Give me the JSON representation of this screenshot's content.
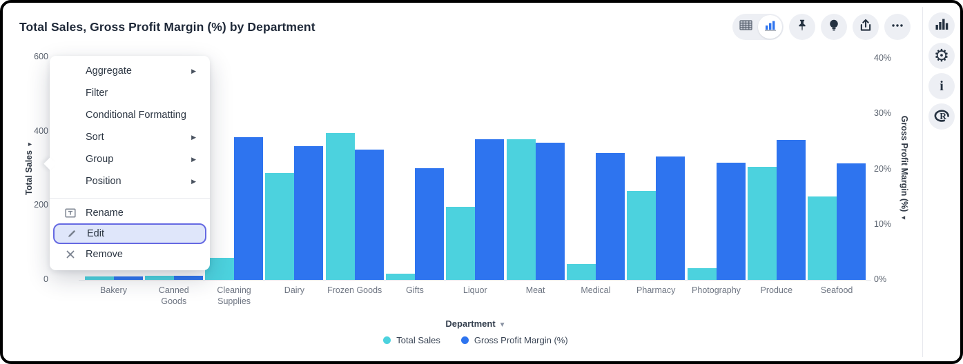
{
  "header": {
    "title": "Total Sales, Gross Profit Margin (%) by Department"
  },
  "toolbar": {
    "view_toggle": {
      "options": [
        "table-view",
        "chart-view"
      ],
      "active": "chart-view"
    },
    "buttons": [
      "pin",
      "insights-bulb",
      "export",
      "more-ellipsis"
    ]
  },
  "right_sidebar": {
    "buttons": [
      "charts",
      "settings-gear",
      "info",
      "r-logo"
    ]
  },
  "context_menu": {
    "items": [
      {
        "label": "Aggregate",
        "submenu": true
      },
      {
        "label": "Filter",
        "submenu": false
      },
      {
        "label": "Conditional Formatting",
        "submenu": false
      },
      {
        "label": "Sort",
        "submenu": true
      },
      {
        "label": "Group",
        "submenu": true
      },
      {
        "label": "Position",
        "submenu": true
      }
    ],
    "actions": [
      {
        "label": "Rename",
        "icon": "rename-icon",
        "selected": false
      },
      {
        "label": "Edit",
        "icon": "pencil-icon",
        "selected": true
      },
      {
        "label": "Remove",
        "icon": "x-icon",
        "selected": false
      }
    ]
  },
  "chart_data": {
    "type": "bar",
    "title": "Total Sales, Gross Profit Margin (%) by Department",
    "xlabel": "Department",
    "categories": [
      "Bakery",
      "Canned Goods",
      "Cleaning Supplies",
      "Dairy",
      "Frozen Goods",
      "Gifts",
      "Liquor",
      "Meat",
      "Medical",
      "Pharmacy",
      "Photography",
      "Produce",
      "Seafood"
    ],
    "series": [
      {
        "name": "Total Sales",
        "axis": "left",
        "color": "#4cd2de",
        "values": [
          9,
          11,
          60,
          288,
          396,
          17,
          197,
          379,
          43,
          240,
          32,
          305,
          225
        ]
      },
      {
        "name": "Gross Profit Margin (%)",
        "axis": "right",
        "color": "#2e74ef",
        "values": [
          0.6,
          0.8,
          25.8,
          24.2,
          23.6,
          20.2,
          25.4,
          24.8,
          22.9,
          22.3,
          21.2,
          25.3,
          21.0
        ]
      }
    ],
    "left_axis": {
      "label": "Total Sales",
      "ticks": [
        600,
        400,
        200,
        0
      ],
      "min": 0,
      "max": 600
    },
    "right_axis": {
      "label": "Gross Profit Margin (%)",
      "ticks": [
        "40%",
        "30%",
        "20%",
        "10%",
        "0%"
      ],
      "tick_values": [
        40,
        30,
        20,
        10,
        0
      ],
      "min": 0,
      "max": 40
    },
    "legend": [
      {
        "label": "Total Sales",
        "color": "#4cd2de"
      },
      {
        "label": "Gross Profit Margin (%)",
        "color": "#2e74ef"
      }
    ],
    "grid": false,
    "legend_position": "bottom"
  },
  "colors": {
    "cyan": "#4cd2de",
    "blue": "#2e74ef",
    "highlight_border": "#6569e2",
    "highlight_bg": "#dfe6fa",
    "icon_dark": "#253241"
  }
}
